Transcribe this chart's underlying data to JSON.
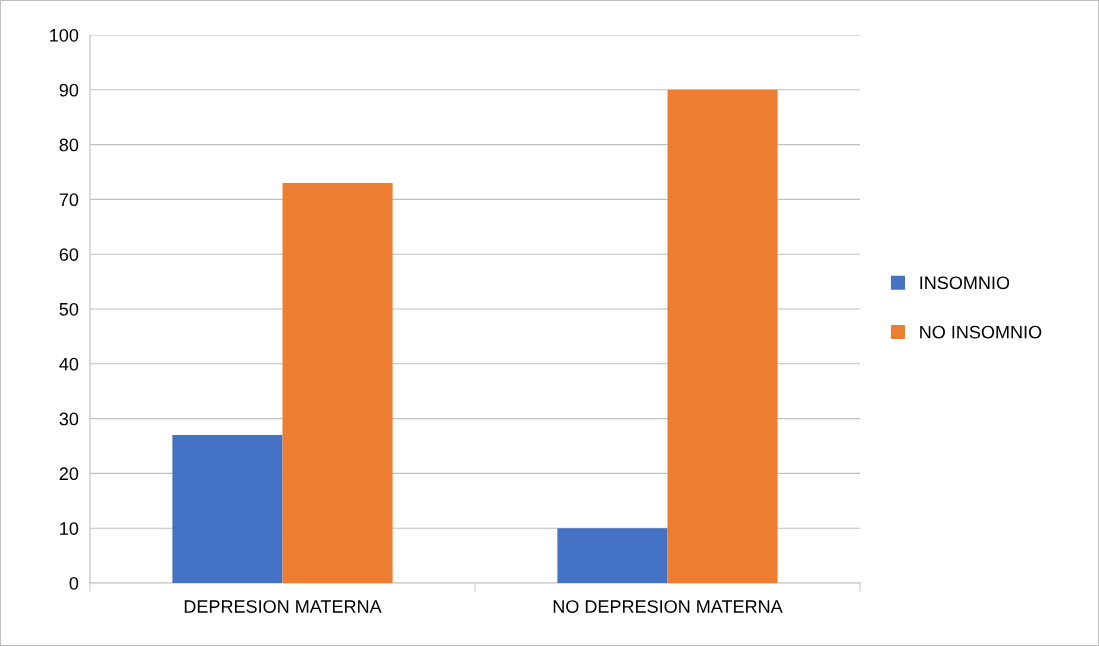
{
  "chart_data": {
    "type": "bar",
    "categories": [
      "DEPRESION MATERNA",
      "NO DEPRESION MATERNA"
    ],
    "series": [
      {
        "name": "INSOMNIO",
        "color": "#4472c4",
        "values": [
          27,
          10
        ]
      },
      {
        "name": "NO INSOMNIO",
        "color": "#ed7d31",
        "values": [
          73,
          90
        ]
      }
    ],
    "ylim": [
      0,
      100
    ],
    "yticks": [
      0,
      10,
      20,
      30,
      40,
      50,
      60,
      70,
      80,
      90,
      100
    ],
    "grid": "y",
    "legend": "right"
  }
}
